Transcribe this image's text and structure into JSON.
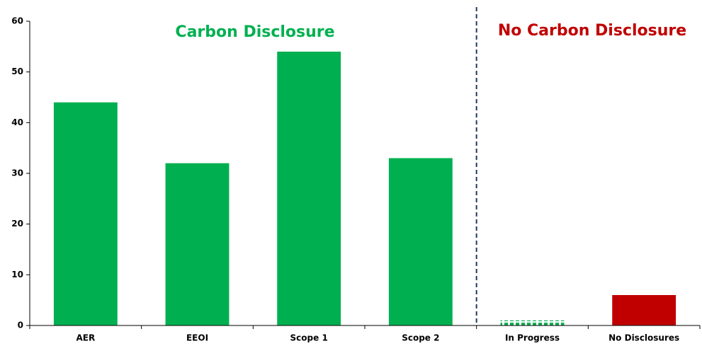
{
  "chart_data": {
    "type": "bar",
    "categories": [
      "AER",
      "EEOI",
      "Scope 1",
      "Scope 2",
      "In Progress",
      "No Disclosures"
    ],
    "values": [
      44,
      32,
      54,
      33,
      1,
      6
    ],
    "colors": [
      "#00b050",
      "#00b050",
      "#00b050",
      "#00b050",
      "#00b050",
      "#c00000"
    ],
    "bar_styles": [
      "solid",
      "solid",
      "solid",
      "solid",
      "dotted",
      "solid"
    ],
    "ylim": [
      0,
      60
    ],
    "yticks": [
      0,
      10,
      20,
      30,
      40,
      50,
      60
    ],
    "grid": false,
    "divider_after": 3,
    "annotations": [
      {
        "text": "Carbon Disclosure",
        "color": "#00b050"
      },
      {
        "text": "No Carbon Disclosure",
        "color": "#c00000"
      }
    ]
  }
}
